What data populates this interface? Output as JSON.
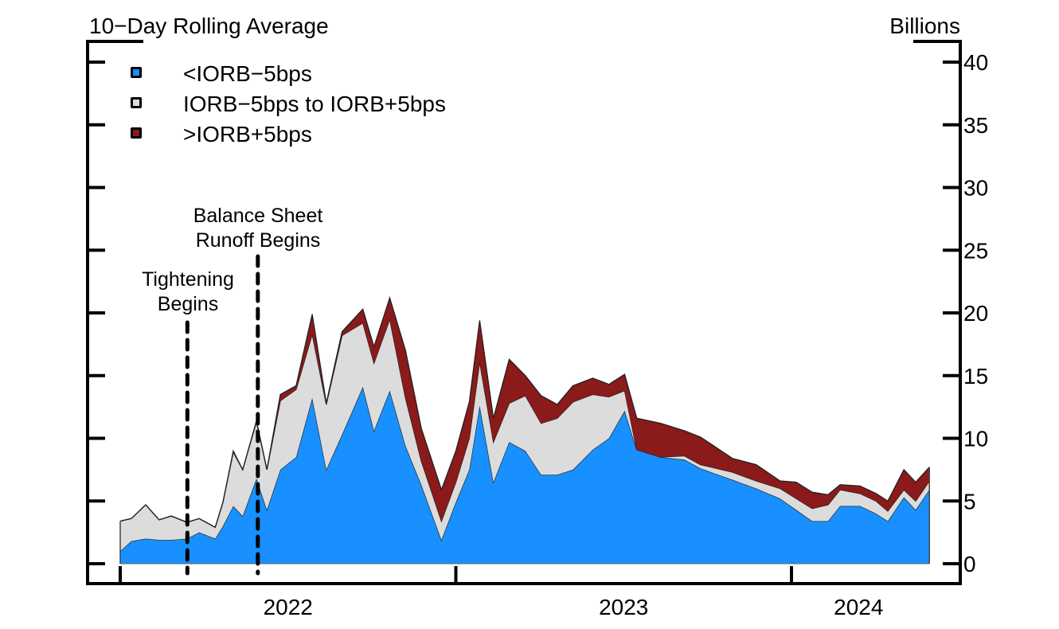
{
  "chart_data": {
    "type": "area",
    "stacked": true,
    "title_left": "10−Day Rolling Average",
    "title_right": "Billions",
    "xlabel": "",
    "ylabel": "Billions",
    "ylim": [
      0,
      40
    ],
    "y_ticks": [
      0,
      5,
      10,
      15,
      20,
      25,
      30,
      35,
      40
    ],
    "y_tick_labels": [
      "0",
      "5",
      "10",
      "15",
      "20",
      "25",
      "30",
      "35",
      "40"
    ],
    "x_range": [
      2022.0,
      2024.45
    ],
    "x_tick_positions": [
      2022.0,
      2023.0,
      2024.0
    ],
    "x_labels": [
      {
        "text": "2022",
        "at": 2022.5
      },
      {
        "text": "2023",
        "at": 2023.5
      },
      {
        "text": "2024",
        "at": 2024.2
      }
    ],
    "legend": {
      "placement": "top-left",
      "entries": [
        {
          "label": "<IORB−5bps",
          "color": "#1890FF"
        },
        {
          "label": "IORB−5bps to IORB+5bps",
          "color": "#DCDCDC"
        },
        {
          "label": ">IORB+5bps",
          "color": "#8B1A1A"
        }
      ]
    },
    "annotations": [
      {
        "lines": [
          "Tightening",
          "Begins"
        ],
        "x": 2022.2,
        "style": "dashed-vertical"
      },
      {
        "lines": [
          "Balance Sheet",
          "Runoff Begins"
        ],
        "x": 2022.41,
        "style": "dashed-vertical"
      }
    ],
    "x": [
      2022.0,
      2022.033,
      2022.076,
      2022.116,
      2022.152,
      2022.199,
      2022.235,
      2022.283,
      2022.306,
      2022.337,
      2022.365,
      2022.406,
      2022.437,
      2022.477,
      2022.524,
      2022.572,
      2022.614,
      2022.661,
      2022.723,
      2022.756,
      2022.803,
      2022.85,
      2022.897,
      2022.957,
      2023.0,
      2023.04,
      2023.071,
      2023.112,
      2023.159,
      2023.207,
      2023.254,
      2023.302,
      2023.349,
      2023.408,
      2023.456,
      2023.503,
      2023.539,
      2023.61,
      2023.681,
      2023.729,
      2023.824,
      2023.895,
      2023.966,
      2024.014,
      2024.062,
      2024.109,
      2024.145,
      2024.204,
      2024.252,
      2024.287,
      2024.335,
      2024.37,
      2024.411
    ],
    "series": [
      {
        "name": "<IORB−5bps",
        "values": [
          1.0,
          1.8,
          2.0,
          1.9,
          1.9,
          2.0,
          2.5,
          2.0,
          3.0,
          4.6,
          3.8,
          6.8,
          4.3,
          7.5,
          8.5,
          13.2,
          7.5,
          10.3,
          14.1,
          10.6,
          13.8,
          9.4,
          6.3,
          1.9,
          4.9,
          7.5,
          12.6,
          6.5,
          9.7,
          9.0,
          7.1,
          7.1,
          7.5,
          9.1,
          10.0,
          12.2,
          9.1,
          8.5,
          8.3,
          7.6,
          6.7,
          6.0,
          5.2,
          4.3,
          3.4,
          3.4,
          4.6,
          4.6,
          4.0,
          3.4,
          5.3,
          4.3,
          5.9
        ]
      },
      {
        "name": "IORB−5bps to IORB+5bps",
        "values": [
          2.4,
          1.8,
          2.7,
          1.6,
          1.9,
          1.3,
          1.1,
          0.9,
          1.9,
          4.3,
          3.7,
          4.5,
          3.2,
          5.5,
          5.4,
          5.1,
          5.2,
          7.9,
          5.1,
          5.4,
          5.7,
          3.8,
          1.9,
          1.5,
          1.6,
          2.5,
          3.5,
          3.2,
          3.1,
          4.4,
          4.1,
          4.5,
          5.4,
          4.4,
          3.3,
          1.6,
          0.0,
          0.0,
          0.3,
          0.3,
          0.6,
          0.6,
          0.8,
          0.9,
          1.0,
          1.3,
          1.3,
          1.0,
          1.0,
          0.8,
          0.6,
          0.7,
          0.7
        ]
      },
      {
        "name": ">IORB+5bps",
        "values": [
          0.0,
          0.0,
          0.0,
          0.0,
          0.0,
          0.0,
          0.0,
          0.0,
          0.0,
          0.1,
          0.0,
          0.1,
          0.0,
          0.5,
          0.3,
          1.6,
          0.1,
          0.3,
          1.1,
          1.3,
          1.7,
          3.8,
          2.6,
          2.5,
          2.5,
          2.9,
          3.3,
          1.9,
          3.5,
          1.6,
          2.2,
          1.1,
          1.3,
          1.3,
          1.0,
          1.3,
          2.5,
          2.7,
          2.0,
          2.2,
          1.1,
          1.3,
          0.6,
          1.3,
          1.3,
          0.8,
          0.4,
          0.6,
          0.6,
          0.8,
          1.6,
          1.5,
          1.1
        ]
      }
    ]
  }
}
